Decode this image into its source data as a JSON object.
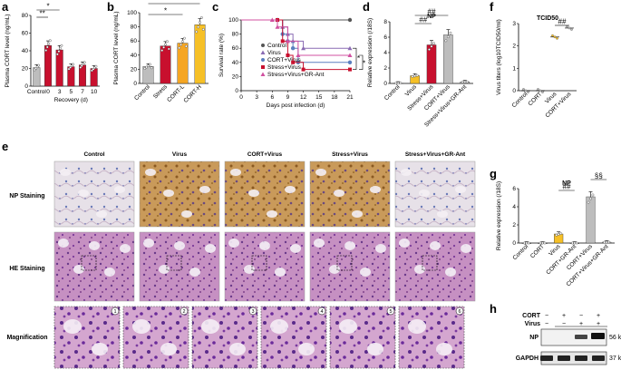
{
  "panels": {
    "a": {
      "letter": "a"
    },
    "b": {
      "letter": "b"
    },
    "c": {
      "letter": "c"
    },
    "d": {
      "letter": "d"
    },
    "e": {
      "letter": "e"
    },
    "f": {
      "letter": "f"
    },
    "g": {
      "letter": "g"
    },
    "h": {
      "letter": "h"
    }
  },
  "colors": {
    "gray": "#bdbdbd",
    "red": "#c8102e",
    "orange": "#f5a623",
    "yellow": "#f6c026",
    "purple": "#8a6bb3",
    "blue": "#5b7fbf",
    "pink": "#d050a0",
    "lightgray": "#d9d9d9"
  },
  "chart_data": [
    {
      "panel": "a",
      "type": "bar",
      "ylabel": "Plasma CORT level (ng/mL)",
      "xlabel": "Recovery (d)",
      "ylim": [
        0,
        80
      ],
      "yticks": [
        0,
        20,
        40,
        60,
        80
      ],
      "categories": [
        "Control",
        "0",
        "3",
        "5",
        "7",
        "10"
      ],
      "values": [
        21,
        46,
        41,
        22,
        24,
        20
      ],
      "sig": [
        {
          "label": "**",
          "from": 0,
          "to": 1
        },
        {
          "label": "*",
          "from": 0,
          "to": 2
        }
      ]
    },
    {
      "panel": "b",
      "type": "bar",
      "ylabel": "Plasma CORT level (ng/mL)",
      "ylim": [
        0,
        100
      ],
      "yticks": [
        0,
        20,
        40,
        60,
        80,
        100
      ],
      "categories": [
        "Control",
        "Stress",
        "CORT-L",
        "CORT-H"
      ],
      "values": [
        24,
        53,
        57,
        83
      ],
      "sig": [
        {
          "label": "*",
          "from": 0,
          "to": 2
        },
        {
          "label": "**",
          "from": 0,
          "to": 3
        }
      ]
    },
    {
      "panel": "c",
      "type": "line",
      "ylabel": "Survival rate (%)",
      "xlabel": "Days post infection (d)",
      "ylim": [
        0,
        100
      ],
      "yticks": [
        0,
        20,
        40,
        60,
        80,
        100
      ],
      "xticks": [
        0,
        3,
        6,
        9,
        12,
        15,
        18,
        21
      ],
      "series": [
        {
          "name": "Control",
          "x": [
            0,
            21
          ],
          "values": [
            100,
            100
          ]
        },
        {
          "name": "Virus",
          "x": [
            0,
            7,
            8,
            9,
            10,
            12,
            21
          ],
          "values": [
            100,
            100,
            90,
            80,
            70,
            60,
            60
          ]
        },
        {
          "name": "CORT+Virus",
          "x": [
            0,
            7,
            8,
            9,
            10,
            11,
            21
          ],
          "values": [
            100,
            100,
            80,
            70,
            60,
            40,
            40
          ]
        },
        {
          "name": "Stress+Virus",
          "x": [
            0,
            7,
            8,
            9,
            10,
            12,
            21
          ],
          "values": [
            100,
            100,
            70,
            50,
            40,
            30,
            30
          ]
        },
        {
          "name": "Stress+Virus+GR-Ant",
          "x": [
            0,
            6,
            7,
            9,
            11,
            21
          ],
          "values": [
            100,
            100,
            90,
            70,
            50,
            50
          ]
        }
      ],
      "sig": [
        "*",
        "*"
      ]
    },
    {
      "panel": "d",
      "type": "bar",
      "title": "NP",
      "ylabel": "Relative expression (/18S)",
      "ylim": [
        0,
        8
      ],
      "yticks": [
        0,
        2,
        4,
        6,
        8
      ],
      "categories": [
        "Control",
        "Virus",
        "Stress+Virus",
        "CORT+Virus",
        "Stress+Virus+GR-Ant"
      ],
      "values": [
        0.05,
        1.0,
        5.0,
        6.3,
        0.2
      ],
      "sig": [
        {
          "label": "##",
          "from": 1,
          "to": 2
        },
        {
          "label": "##",
          "from": 1,
          "to": 3
        }
      ]
    },
    {
      "panel": "f",
      "type": "scatter",
      "title": "TCID50",
      "ylabel": "Virus titers (log10TCID50/ml)",
      "ylim": [
        0,
        3
      ],
      "yticks": [
        0,
        1,
        2,
        3
      ],
      "categories": [
        "Control",
        "CORT",
        "Virus",
        "CORT+Virus"
      ],
      "values": [
        0,
        0,
        2.4,
        2.8
      ],
      "sig": [
        {
          "label": "##",
          "from": 2,
          "to": 3
        }
      ]
    },
    {
      "panel": "g",
      "type": "bar",
      "title": "NP",
      "ylabel": "Relative expression (/18S)",
      "ylim": [
        0,
        6
      ],
      "yticks": [
        0,
        2,
        4,
        6
      ],
      "categories": [
        "Control",
        "CORT",
        "Virus",
        "CORT+GR-Ant",
        "CORT+Virus",
        "CORT+Virus+GR-Ant"
      ],
      "values": [
        0,
        0,
        1.0,
        0,
        5.1,
        0.1
      ],
      "sig": [
        {
          "label": "##",
          "from": 2,
          "to": 3
        },
        {
          "label": "§§",
          "from": 4,
          "to": 5
        }
      ]
    }
  ],
  "histology": {
    "columns": [
      "Control",
      "Virus",
      "CORT+Virus",
      "Stress+Virus",
      "Stress+Virus+GR-Ant"
    ],
    "rows": [
      "NP Staining",
      "HE Staining",
      "Magnification"
    ],
    "mag_numbers": [
      "1",
      "2",
      "3",
      "4",
      "5",
      "6"
    ]
  },
  "western": {
    "rows": [
      {
        "label": "CORT",
        "marks": [
          "−",
          "+",
          "−",
          "+"
        ]
      },
      {
        "label": "Virus",
        "marks": [
          "−",
          "−",
          "+",
          "+"
        ]
      }
    ],
    "bands": [
      {
        "label": "NP",
        "kda": "56 kDa"
      },
      {
        "label": "GAPDH",
        "kda": "37 kDa"
      }
    ]
  }
}
